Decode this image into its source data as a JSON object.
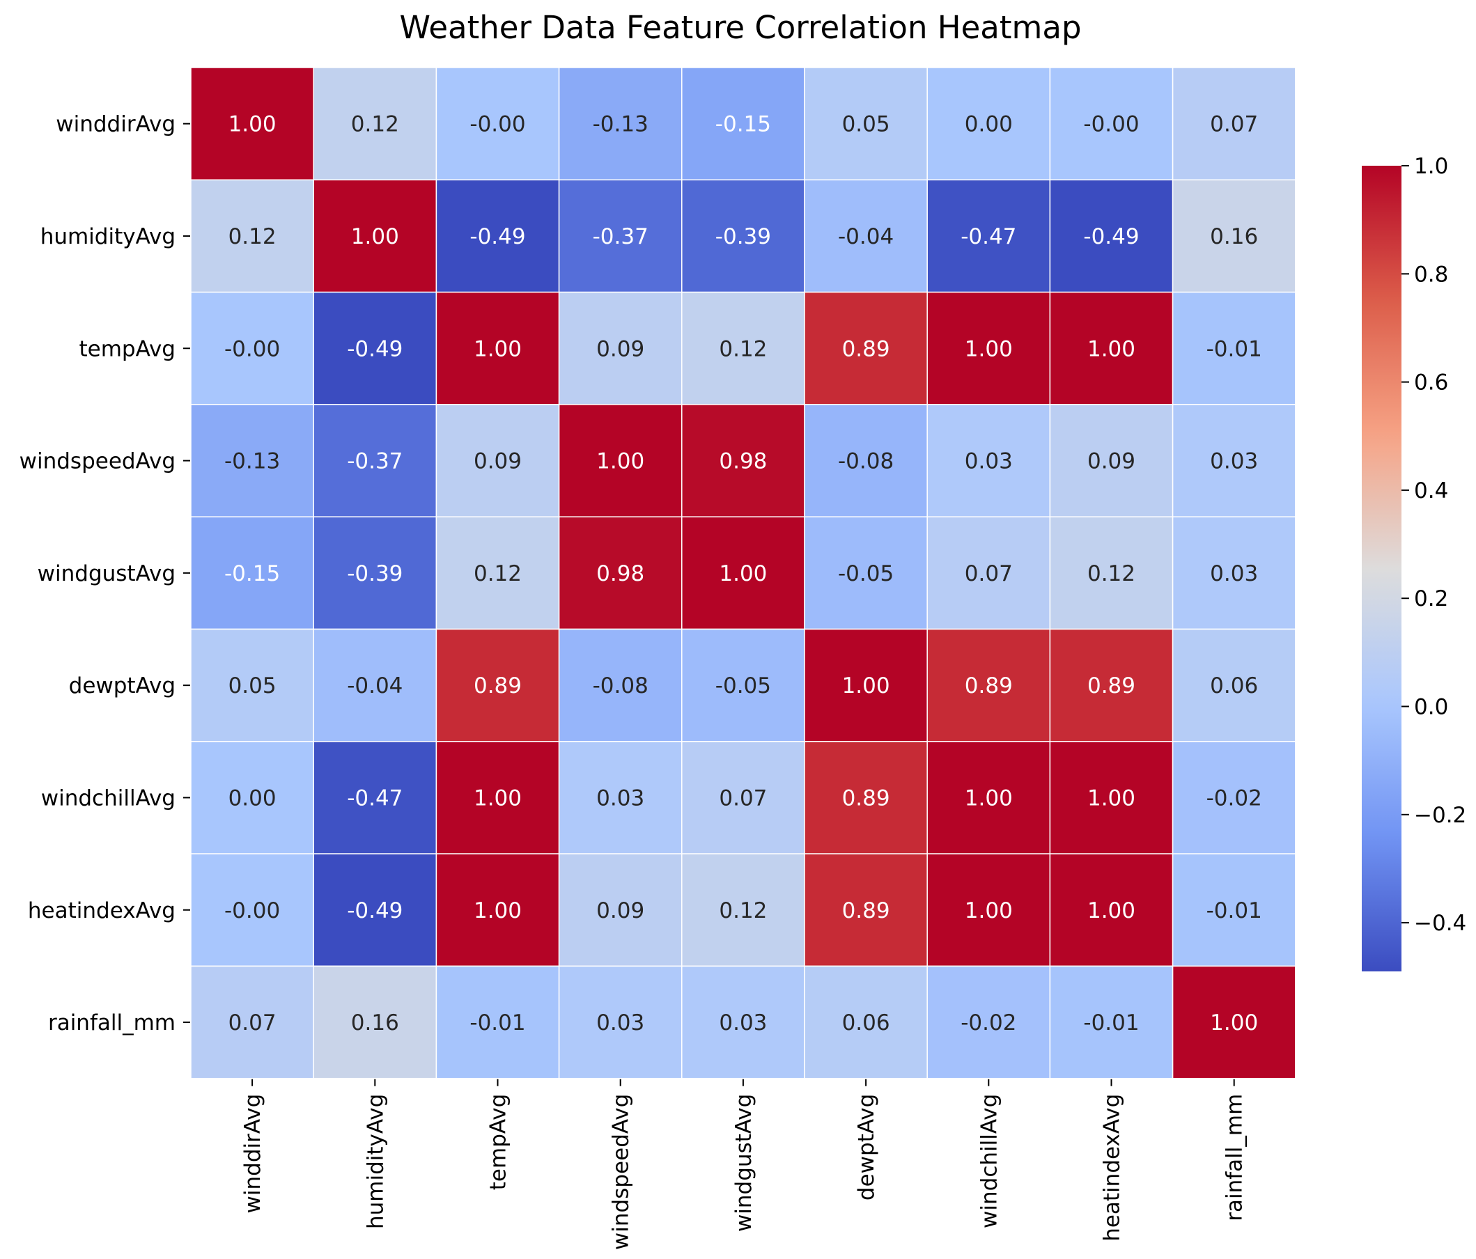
{
  "chart_data": {
    "type": "heatmap",
    "title": "Weather Data Feature Correlation Heatmap",
    "xlabel": "",
    "ylabel": "",
    "rows": [
      "winddirAvg",
      "humidityAvg",
      "tempAvg",
      "windspeedAvg",
      "windgustAvg",
      "dewptAvg",
      "windchillAvg",
      "heatindexAvg",
      "rainfall_mm"
    ],
    "columns": [
      "winddirAvg",
      "humidityAvg",
      "tempAvg",
      "windspeedAvg",
      "windgustAvg",
      "dewptAvg",
      "windchillAvg",
      "heatindexAvg",
      "rainfall_mm"
    ],
    "values": [
      [
        1.0,
        0.12,
        -0.0,
        -0.13,
        -0.15,
        0.05,
        0.0,
        -0.0,
        0.07
      ],
      [
        0.12,
        1.0,
        -0.49,
        -0.37,
        -0.39,
        -0.04,
        -0.47,
        -0.49,
        0.16
      ],
      [
        -0.0,
        -0.49,
        1.0,
        0.09,
        0.12,
        0.89,
        1.0,
        1.0,
        -0.01
      ],
      [
        -0.13,
        -0.37,
        0.09,
        1.0,
        0.98,
        -0.08,
        0.03,
        0.09,
        0.03
      ],
      [
        -0.15,
        -0.39,
        0.12,
        0.98,
        1.0,
        -0.05,
        0.07,
        0.12,
        0.03
      ],
      [
        0.05,
        -0.04,
        0.89,
        -0.08,
        -0.05,
        1.0,
        0.89,
        0.89,
        0.06
      ],
      [
        0.0,
        -0.47,
        1.0,
        0.03,
        0.07,
        0.89,
        1.0,
        1.0,
        -0.02
      ],
      [
        -0.0,
        -0.49,
        1.0,
        0.09,
        0.12,
        0.89,
        1.0,
        1.0,
        -0.01
      ],
      [
        0.07,
        0.16,
        -0.01,
        0.03,
        0.03,
        0.06,
        -0.02,
        -0.01,
        1.0
      ]
    ],
    "cell_labels": [
      [
        "1.00",
        "0.12",
        "-0.00",
        "-0.13",
        "-0.15",
        "0.05",
        "0.00",
        "-0.00",
        "0.07"
      ],
      [
        "0.12",
        "1.00",
        "-0.49",
        "-0.37",
        "-0.39",
        "-0.04",
        "-0.47",
        "-0.49",
        "0.16"
      ],
      [
        "-0.00",
        "-0.49",
        "1.00",
        "0.09",
        "0.12",
        "0.89",
        "1.00",
        "1.00",
        "-0.01"
      ],
      [
        "-0.13",
        "-0.37",
        "0.09",
        "1.00",
        "0.98",
        "-0.08",
        "0.03",
        "0.09",
        "0.03"
      ],
      [
        "-0.15",
        "-0.39",
        "0.12",
        "0.98",
        "1.00",
        "-0.05",
        "0.07",
        "0.12",
        "0.03"
      ],
      [
        "0.05",
        "-0.04",
        "0.89",
        "-0.08",
        "-0.05",
        "1.00",
        "0.89",
        "0.89",
        "0.06"
      ],
      [
        "0.00",
        "-0.47",
        "1.00",
        "0.03",
        "0.07",
        "0.89",
        "1.00",
        "1.00",
        "-0.02"
      ],
      [
        "-0.00",
        "-0.49",
        "1.00",
        "0.09",
        "0.12",
        "0.89",
        "1.00",
        "1.00",
        "-0.01"
      ],
      [
        "0.07",
        "0.16",
        "-0.01",
        "0.03",
        "0.03",
        "0.06",
        "-0.02",
        "-0.01",
        "1.00"
      ]
    ],
    "colormap": "coolwarm",
    "colorbar": {
      "vmin": -0.49,
      "vmax": 1.0,
      "ticks": [
        1.0,
        0.8,
        0.6,
        0.4,
        0.2,
        0.0,
        -0.2,
        -0.4
      ],
      "tick_labels": [
        "1.0",
        "0.8",
        "0.6",
        "0.4",
        "0.2",
        "0.0",
        "−0.2",
        "−0.4"
      ]
    },
    "colors": {
      "stops": [
        "#3b4cc0",
        "#7093f3",
        "#aac7fd",
        "#dddcdc",
        "#f6a385",
        "#dc5d4a",
        "#b40426"
      ],
      "gridline": "#ffffff",
      "text_dark": "#262626",
      "text_light": "#ffffff"
    }
  }
}
